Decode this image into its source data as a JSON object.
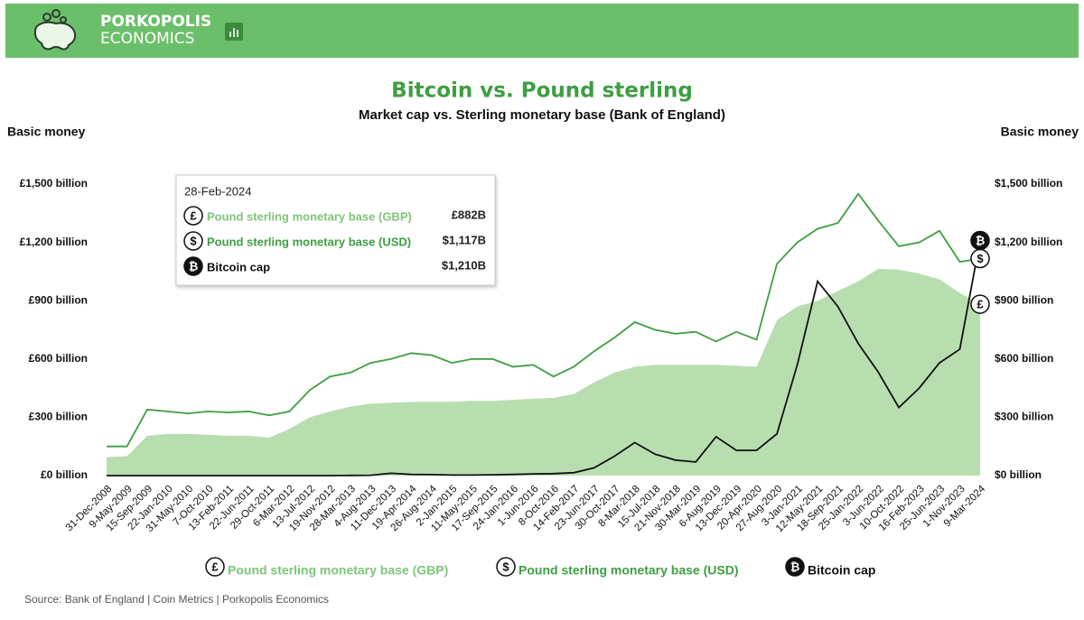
{
  "header": {
    "brand_line1": "PORKOPOLIS",
    "brand_line2": "ECONOMICS"
  },
  "chart_data": {
    "type": "line",
    "title": "Bitcoin vs. Pound sterling",
    "subtitle": "Market cap vs. Sterling monetary base (Bank of England)",
    "y_label": "Basic money",
    "y2_label": "Basic money",
    "categories": [
      "31-Dec-2008",
      "9-May-2009",
      "15-Sep-2009",
      "22-Jan-2010",
      "31-May-2010",
      "7-Oct-2010",
      "13-Feb-2011",
      "22-Jun-2011",
      "29-Oct-2011",
      "6-Mar-2012",
      "13-Jul-2012",
      "19-Nov-2012",
      "28-Mar-2013",
      "4-Aug-2013",
      "11-Dec-2013",
      "19-Apr-2014",
      "26-Aug-2014",
      "2-Jan-2015",
      "11-May-2015",
      "17-Sep-2015",
      "24-Jan-2016",
      "1-Jun-2016",
      "8-Oct-2016",
      "14-Feb-2017",
      "23-Jun-2017",
      "30-Oct-2017",
      "8-Mar-2018",
      "15-Jul-2018",
      "21-Nov-2018",
      "30-Mar-2019",
      "6-Aug-2019",
      "13-Dec-2019",
      "20-Apr-2020",
      "27-Aug-2020",
      "3-Jan-2021",
      "12-May-2021",
      "18-Sep-2021",
      "25-Jan-2022",
      "3-Jun-2022",
      "10-Oct-2022",
      "16-Feb-2023",
      "25-Jun-2023",
      "1-Nov-2023",
      "9-Mar-2024"
    ],
    "series": [
      {
        "name": "Pound sterling monetary base (GBP)",
        "icon": "£",
        "style": "area",
        "color": "#b8deb0",
        "values": [
          95,
          100,
          205,
          215,
          215,
          210,
          205,
          205,
          195,
          240,
          300,
          330,
          355,
          370,
          375,
          380,
          380,
          380,
          385,
          385,
          390,
          395,
          400,
          420,
          480,
          530,
          560,
          570,
          570,
          570,
          570,
          565,
          560,
          800,
          870,
          900,
          950,
          1000,
          1065,
          1060,
          1040,
          1010,
          940,
          882
        ]
      },
      {
        "name": "Pound sterling monetary base (USD)",
        "icon": "$",
        "style": "line",
        "color": "#3e9e42",
        "values": [
          150,
          150,
          340,
          330,
          320,
          330,
          325,
          330,
          310,
          330,
          440,
          510,
          530,
          580,
          600,
          630,
          620,
          580,
          600,
          600,
          560,
          570,
          510,
          560,
          640,
          710,
          790,
          750,
          730,
          740,
          690,
          740,
          700,
          1090,
          1200,
          1270,
          1300,
          1450,
          1310,
          1180,
          1200,
          1260,
          1100,
          1117
        ]
      },
      {
        "name": "Bitcoin cap",
        "icon": "₿",
        "style": "line",
        "color": "#111111",
        "values": [
          0,
          0,
          0,
          0,
          0,
          0,
          0,
          0,
          0,
          0,
          0,
          0,
          1,
          2,
          12,
          6,
          5,
          3,
          3,
          4,
          6,
          9,
          10,
          15,
          40,
          100,
          170,
          110,
          80,
          70,
          200,
          130,
          130,
          215,
          570,
          1000,
          870,
          680,
          530,
          350,
          450,
          580,
          650,
          1210
        ]
      }
    ],
    "ylim": [
      0,
      1500
    ],
    "yticks": [
      {
        "value": 0,
        "label": "£0 billion"
      },
      {
        "value": 300,
        "label": "£300 billion"
      },
      {
        "value": 600,
        "label": "£600 billion"
      },
      {
        "value": 900,
        "label": "£900 billion"
      },
      {
        "value": 1200,
        "label": "£1,200 billion"
      },
      {
        "value": 1500,
        "label": "£1,500 billion"
      }
    ],
    "y2lim": [
      0,
      1500
    ],
    "y2ticks": [
      {
        "value": 0,
        "label": "$0 billion"
      },
      {
        "value": 300,
        "label": "$300 billion"
      },
      {
        "value": 600,
        "label": "$600 billion"
      },
      {
        "value": 900,
        "label": "$900 billion"
      },
      {
        "value": 1200,
        "label": "$1,200 billion"
      },
      {
        "value": 1500,
        "label": "$1,500 billion"
      }
    ],
    "tooltip": {
      "date": "28-Feb-2024",
      "values": [
        "£882B",
        "$1,117B",
        "$1,210B"
      ]
    },
    "source": "Source: Bank of England | Coin Metrics | Porkopolis Economics"
  }
}
